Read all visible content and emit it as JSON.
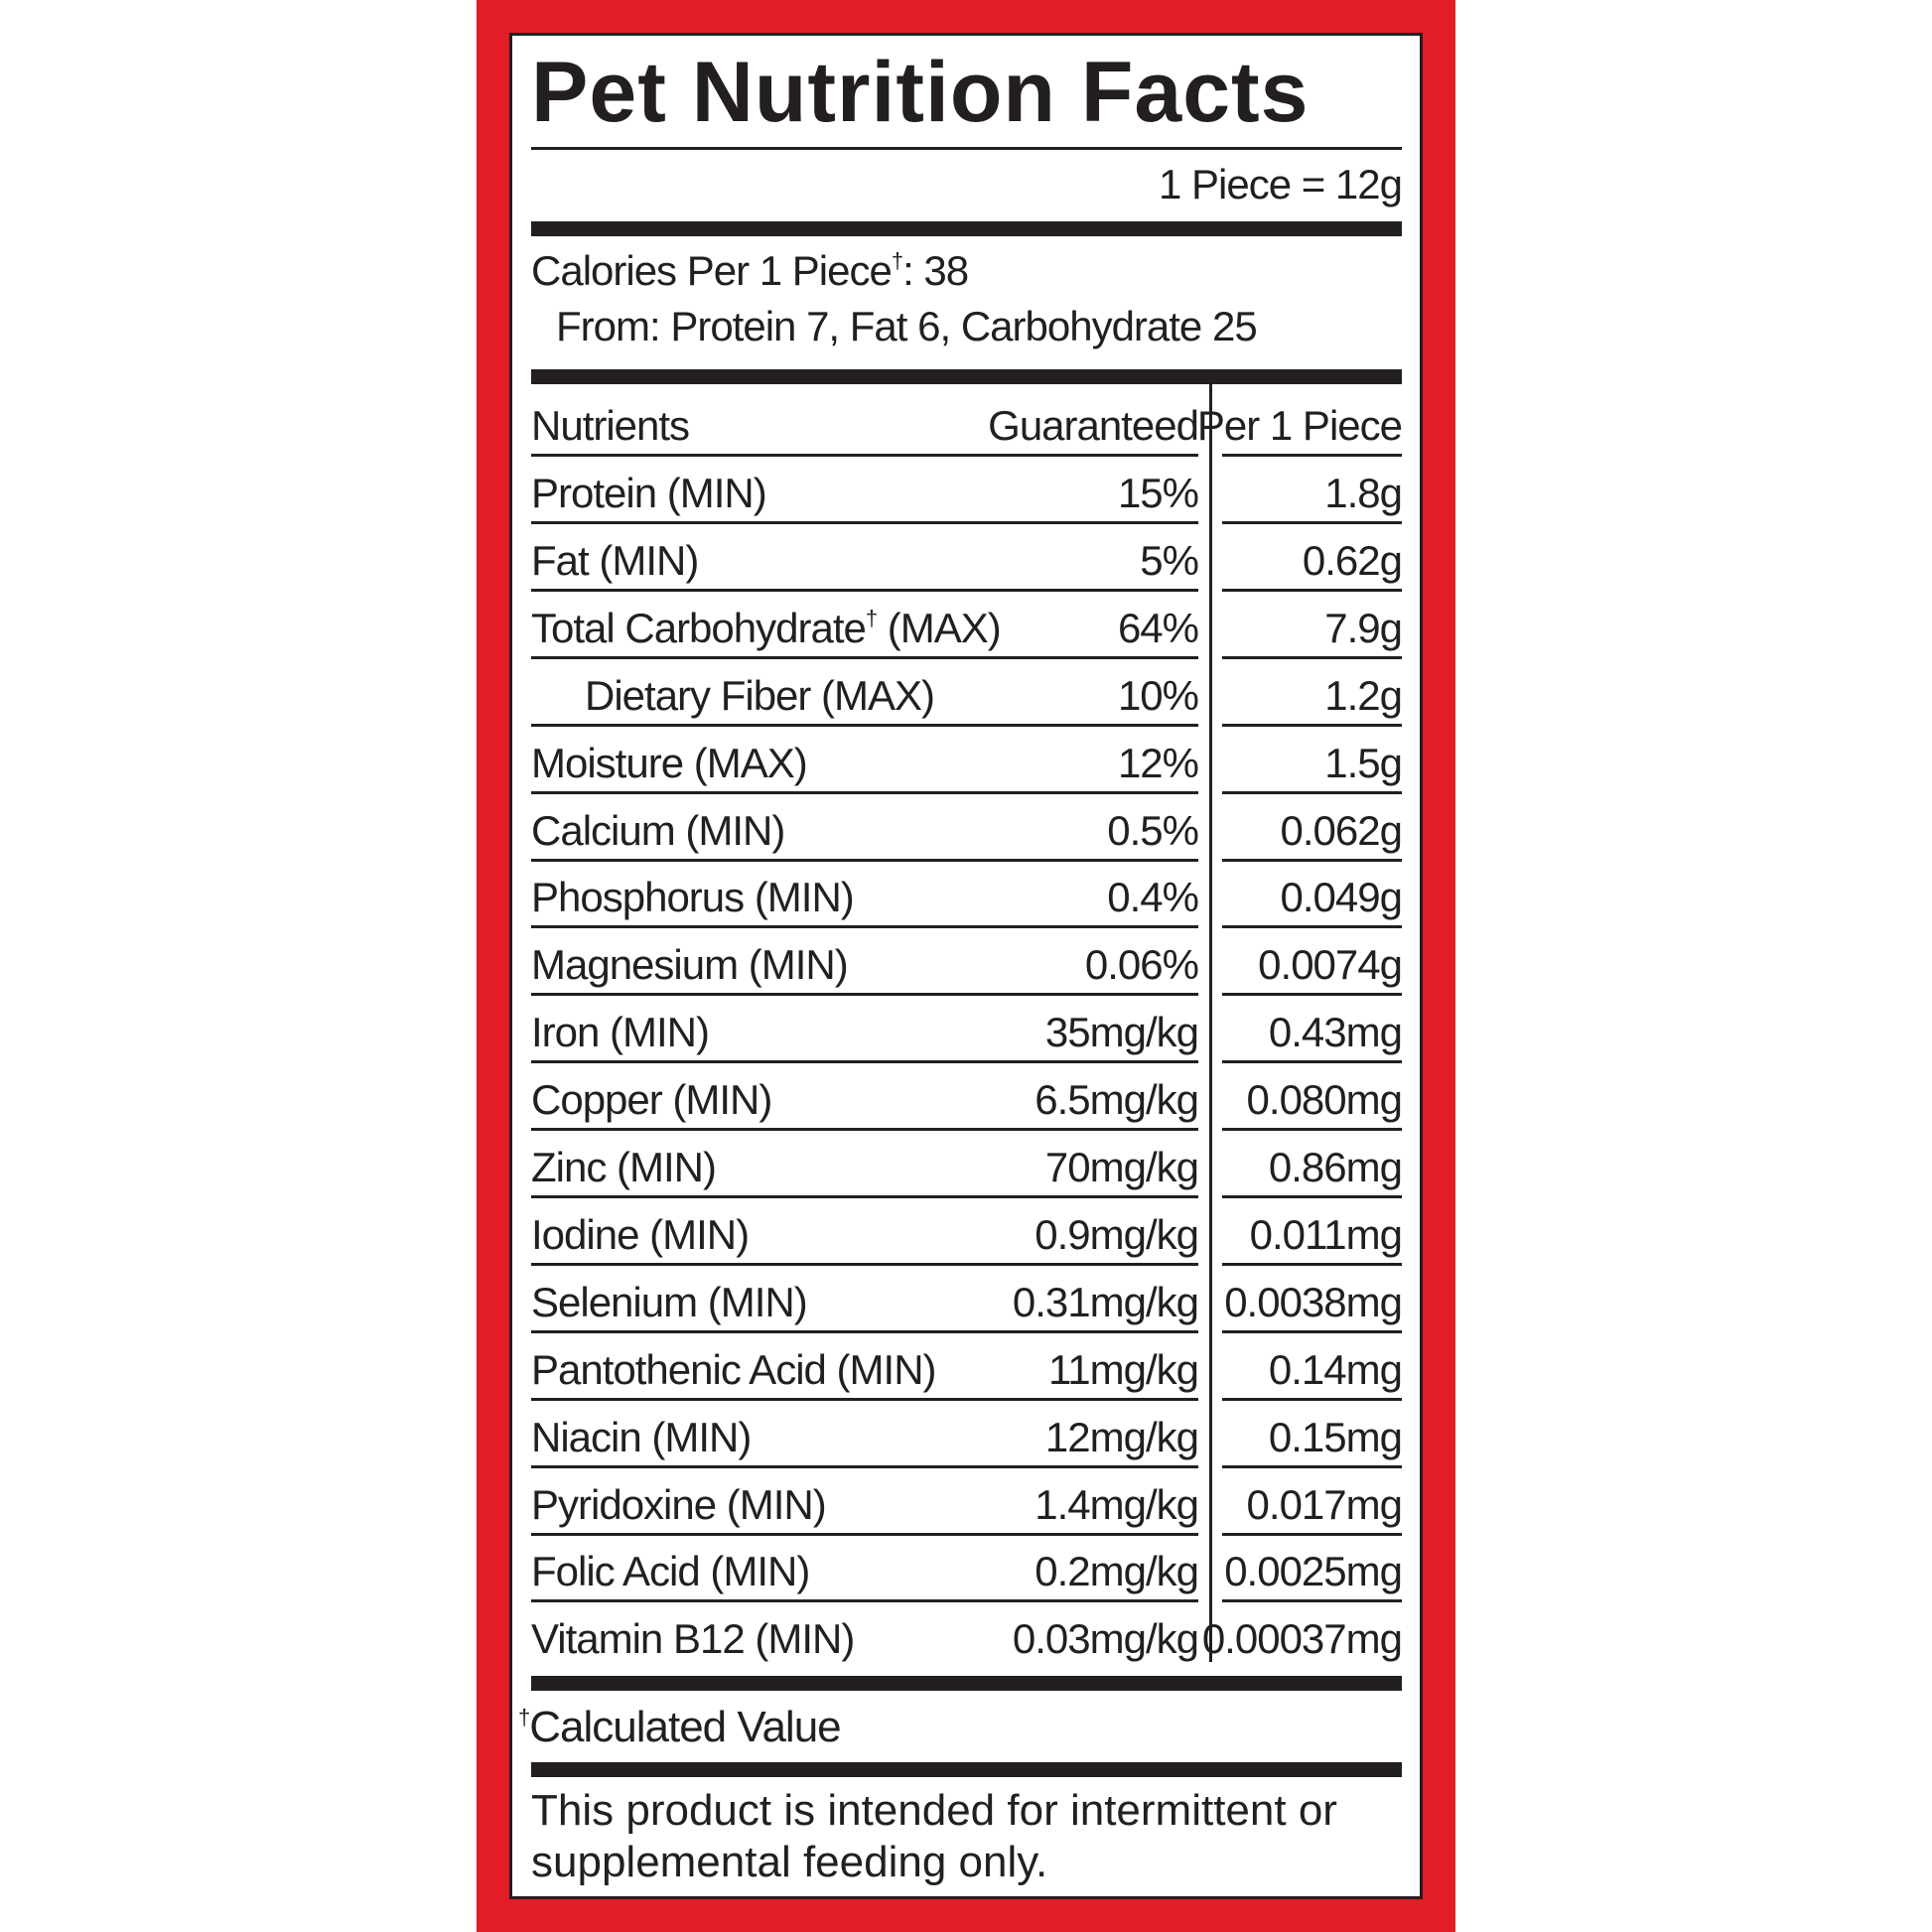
{
  "colors": {
    "frame": "#e21d25",
    "ink": "#231f20",
    "background": "#ffffff"
  },
  "title": "Pet Nutrition Facts",
  "serving": "1 Piece = 12g",
  "calories": {
    "label": "Calories Per 1 Piece",
    "dagger": "†",
    "value": ": 38"
  },
  "calories_from": "From: Protein 7, Fat 6, Carbohydrate 25",
  "table": {
    "headers": {
      "nutrient": "Nutrients",
      "guaranteed": "Guaranteed",
      "per_piece": "Per 1 Piece"
    },
    "rows": [
      {
        "name": "Protein (MIN)",
        "guaranteed": "15%",
        "per_piece": "1.8g"
      },
      {
        "name": "Fat (MIN)",
        "guaranteed": "5%",
        "per_piece": "0.62g"
      },
      {
        "name": "Total Carbohydrate",
        "dagger": "†",
        "suffix": " (MAX)",
        "guaranteed": "64%",
        "per_piece": "7.9g"
      },
      {
        "name": "Dietary Fiber (MAX)",
        "indent": true,
        "guaranteed": "10%",
        "per_piece": "1.2g"
      },
      {
        "name": "Moisture (MAX)",
        "guaranteed": "12%",
        "per_piece": "1.5g"
      },
      {
        "name": "Calcium (MIN)",
        "guaranteed": "0.5%",
        "per_piece": "0.062g"
      },
      {
        "name": "Phosphorus (MIN)",
        "guaranteed": "0.4%",
        "per_piece": "0.049g"
      },
      {
        "name": "Magnesium (MIN)",
        "guaranteed": "0.06%",
        "per_piece": "0.0074g"
      },
      {
        "name": "Iron (MIN)",
        "guaranteed": "35mg/kg",
        "per_piece": "0.43mg"
      },
      {
        "name": "Copper (MIN)",
        "guaranteed": "6.5mg/kg",
        "per_piece": "0.080mg"
      },
      {
        "name": "Zinc (MIN)",
        "guaranteed": "70mg/kg",
        "per_piece": "0.86mg"
      },
      {
        "name": "Iodine (MIN)",
        "guaranteed": "0.9mg/kg",
        "per_piece": "0.011mg"
      },
      {
        "name": "Selenium (MIN)",
        "guaranteed": "0.31mg/kg",
        "per_piece": "0.0038mg"
      },
      {
        "name": "Pantothenic Acid (MIN)",
        "guaranteed": "11mg/kg",
        "per_piece": "0.14mg"
      },
      {
        "name": "Niacin (MIN)",
        "guaranteed": "12mg/kg",
        "per_piece": "0.15mg"
      },
      {
        "name": "Pyridoxine (MIN)",
        "guaranteed": "1.4mg/kg",
        "per_piece": "0.017mg"
      },
      {
        "name": "Folic Acid (MIN)",
        "guaranteed": "0.2mg/kg",
        "per_piece": "0.0025mg"
      },
      {
        "name": "Vitamin B12 (MIN)",
        "guaranteed": "0.03mg/kg",
        "per_piece": "0.00037mg"
      }
    ]
  },
  "footnote": {
    "dagger": "†",
    "text": "Calculated Value"
  },
  "disclaimer": [
    "This product is intended for intermittent or",
    "supplemental feeding only."
  ]
}
